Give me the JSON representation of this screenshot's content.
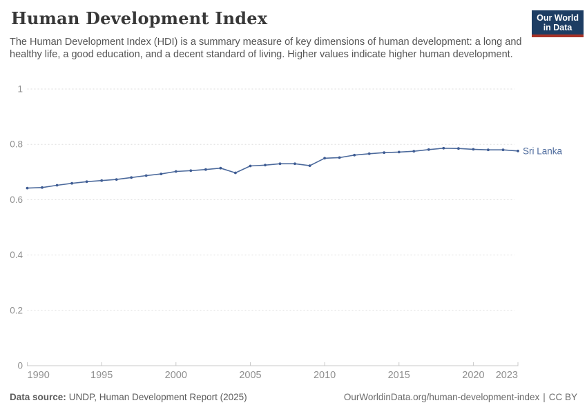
{
  "header": {
    "title": "Human Development Index",
    "subtitle": "The Human Development Index (HDI) is a summary measure of key dimensions of human development: a long and healthy life, a good education, and a decent standard of living. Higher values indicate higher human development.",
    "logo": {
      "line1": "Our World",
      "line2": "in Data",
      "bg_color": "#1d3d63",
      "accent_color": "#a93226"
    }
  },
  "chart_data": {
    "type": "line",
    "title": "Human Development Index",
    "entity": "Sri Lanka",
    "x": [
      1990,
      1991,
      1992,
      1993,
      1994,
      1995,
      1996,
      1997,
      1998,
      1999,
      2000,
      2001,
      2002,
      2003,
      2004,
      2005,
      2006,
      2007,
      2008,
      2009,
      2010,
      2011,
      2012,
      2013,
      2014,
      2015,
      2016,
      2017,
      2018,
      2019,
      2020,
      2021,
      2022,
      2023
    ],
    "series": [
      {
        "name": "Sri Lanka",
        "color": "#4c6a9c",
        "marker_color": "#3f5c93",
        "values": [
          0.642,
          0.644,
          0.652,
          0.659,
          0.665,
          0.669,
          0.673,
          0.68,
          0.687,
          0.693,
          0.702,
          0.705,
          0.709,
          0.714,
          0.697,
          0.722,
          0.725,
          0.73,
          0.73,
          0.723,
          0.75,
          0.752,
          0.761,
          0.766,
          0.77,
          0.772,
          0.775,
          0.781,
          0.786,
          0.785,
          0.782,
          0.78,
          0.78,
          0.776
        ]
      }
    ],
    "xlabel": "",
    "ylabel": "",
    "ylim": [
      0,
      1
    ],
    "yticks": [
      0,
      0.2,
      0.4,
      0.6,
      0.8,
      1
    ],
    "ytick_labels": [
      "0",
      "0.2",
      "0.4",
      "0.6",
      "0.8",
      "1"
    ],
    "xticks": [
      1990,
      1995,
      2000,
      2005,
      2010,
      2015,
      2020,
      2023
    ],
    "grid": "horizontal-dashed",
    "grid_color": "#dddddd",
    "axis_color": "#c8c8c8",
    "tick_label_color": "#8f8f8f",
    "legend_position": "end-of-line-label"
  },
  "footer": {
    "datasource_label": "Data source:",
    "datasource_value": "UNDP, Human Development Report (2025)",
    "url": "OurWorldinData.org/human-development-index",
    "separator": "|",
    "license": "CC BY"
  }
}
